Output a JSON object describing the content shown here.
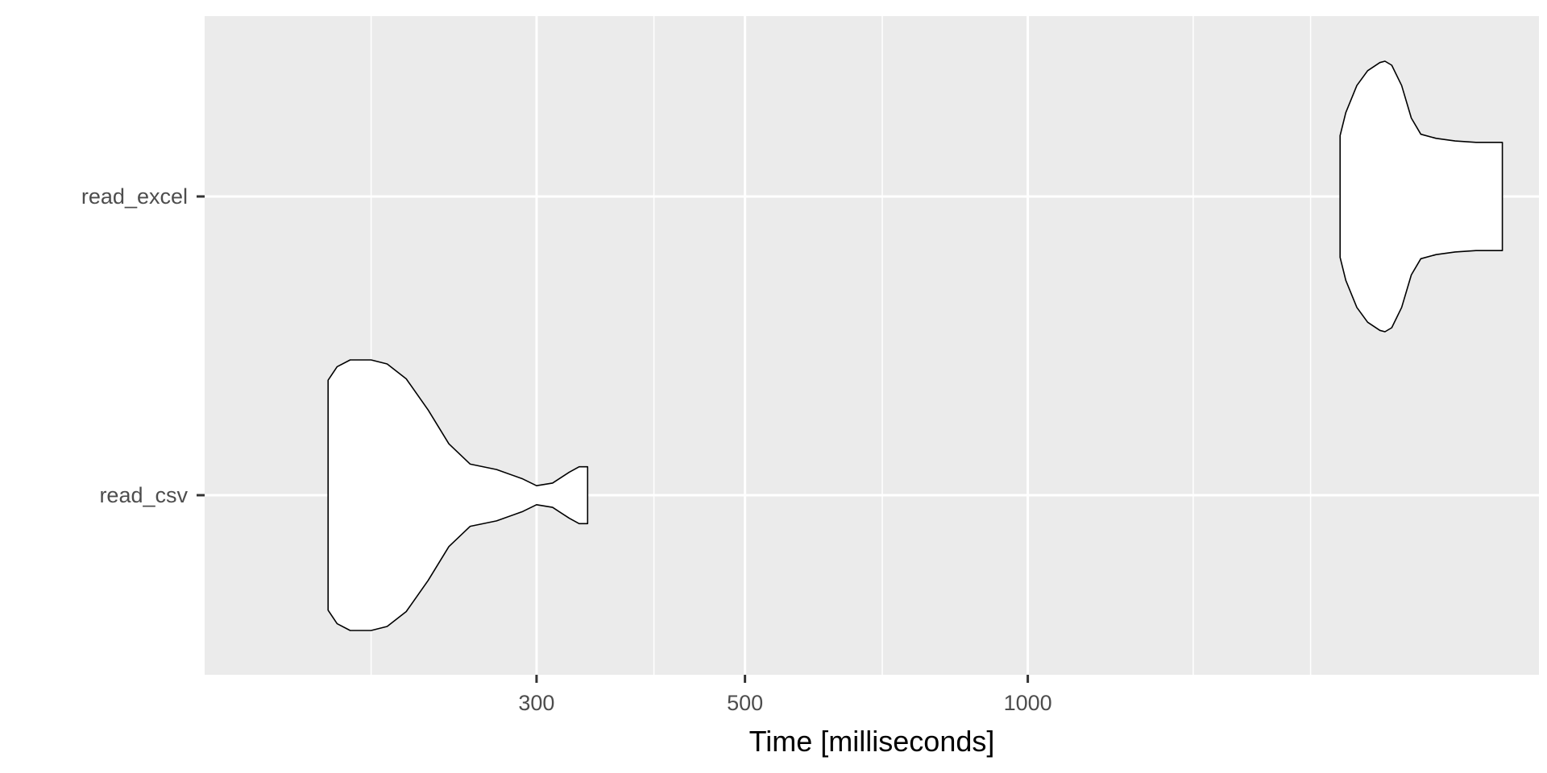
{
  "chart_data": {
    "type": "violin",
    "orientation": "horizontal",
    "xlabel": "Time [milliseconds]",
    "ylabel": "",
    "x_scale": "log10",
    "xlim": [
      133,
      3500
    ],
    "x_ticks": [
      300,
      500,
      1000
    ],
    "x_tick_labels": [
      "300",
      "500",
      "1000"
    ],
    "x_minor_gridlines": [
      200,
      400,
      700,
      1500,
      2000
    ],
    "grid": true,
    "panel_background": "#EBEBEB",
    "grid_color": "#FFFFFF",
    "violin_fill": "#FFFFFF",
    "violin_stroke": "#000000",
    "categories": [
      "read_excel",
      "read_csv"
    ],
    "series": [
      {
        "name": "read_excel",
        "min_ms": 2150,
        "max_ms": 3200,
        "mode_ms": 2380,
        "density": [
          [
            2150,
            0.45
          ],
          [
            2180,
            0.62
          ],
          [
            2240,
            0.82
          ],
          [
            2300,
            0.93
          ],
          [
            2370,
            0.99
          ],
          [
            2400,
            1.0
          ],
          [
            2440,
            0.97
          ],
          [
            2500,
            0.82
          ],
          [
            2560,
            0.58
          ],
          [
            2620,
            0.46
          ],
          [
            2720,
            0.43
          ],
          [
            2850,
            0.41
          ],
          [
            3000,
            0.4
          ],
          [
            3200,
            0.4
          ]
        ]
      },
      {
        "name": "read_csv",
        "min_ms": 180,
        "max_ms": 340,
        "mode_ms": 195,
        "density": [
          [
            180,
            0.85
          ],
          [
            184,
            0.95
          ],
          [
            190,
            1.0
          ],
          [
            200,
            1.0
          ],
          [
            208,
            0.97
          ],
          [
            218,
            0.86
          ],
          [
            230,
            0.63
          ],
          [
            242,
            0.38
          ],
          [
            255,
            0.23
          ],
          [
            272,
            0.19
          ],
          [
            290,
            0.12
          ],
          [
            300,
            0.07
          ],
          [
            312,
            0.09
          ],
          [
            325,
            0.17
          ],
          [
            333,
            0.21
          ],
          [
            340,
            0.21
          ]
        ]
      }
    ]
  }
}
